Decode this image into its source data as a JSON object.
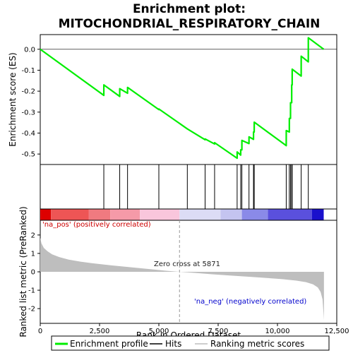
{
  "colors": {
    "enrichment_line": "#00ee00",
    "hits": "#000000",
    "metric_fill": "#bebebe",
    "pos_label": "#cc0000",
    "neg_label": "#0000cc"
  },
  "chart_data": [
    {
      "type": "line",
      "panel": "enrichment",
      "title_line1": "Enrichment plot:",
      "title_line2": "MITOCHONDRIAL_RESPIRATORY_CHAIN",
      "ylabel": "Enrichment score (ES)",
      "ylim": [
        -0.55,
        0.07
      ],
      "yticks": [
        0.0,
        -0.1,
        -0.2,
        -0.3,
        -0.4,
        -0.5
      ],
      "ytick_labels": [
        "0.0",
        "-0.1",
        "-0.2",
        "-0.3",
        "-0.4",
        "-0.5"
      ],
      "xlim": [
        0,
        12500
      ],
      "hits": [
        2680,
        3350,
        3680,
        5000,
        6200,
        6950,
        7350,
        8300,
        8450,
        8500,
        8800,
        8990,
        9020,
        10370,
        10500,
        10550,
        10600,
        10620,
        11000,
        11300
      ],
      "es_profile": [
        [
          0,
          0.0
        ],
        [
          2680,
          -0.22
        ],
        [
          2681,
          -0.17
        ],
        [
          3350,
          -0.225
        ],
        [
          3351,
          -0.188
        ],
        [
          3680,
          -0.21
        ],
        [
          3681,
          -0.182
        ],
        [
          5000,
          -0.288
        ],
        [
          5001,
          -0.285
        ],
        [
          6200,
          -0.38
        ],
        [
          6950,
          -0.432
        ],
        [
          6951,
          -0.428
        ],
        [
          7350,
          -0.452
        ],
        [
          7351,
          -0.446
        ],
        [
          8300,
          -0.52
        ],
        [
          8301,
          -0.49
        ],
        [
          8450,
          -0.505
        ],
        [
          8451,
          -0.48
        ],
        [
          8500,
          -0.48
        ],
        [
          8501,
          -0.435
        ],
        [
          8800,
          -0.45
        ],
        [
          8801,
          -0.418
        ],
        [
          8990,
          -0.43
        ],
        [
          8991,
          -0.395
        ],
        [
          9020,
          -0.395
        ],
        [
          9021,
          -0.348
        ],
        [
          10370,
          -0.46
        ],
        [
          10371,
          -0.388
        ],
        [
          10500,
          -0.395
        ],
        [
          10501,
          -0.33
        ],
        [
          10550,
          -0.33
        ],
        [
          10551,
          -0.255
        ],
        [
          10600,
          -0.255
        ],
        [
          10601,
          -0.17
        ],
        [
          10620,
          -0.17
        ],
        [
          10621,
          -0.095
        ],
        [
          11000,
          -0.128
        ],
        [
          11001,
          -0.033
        ],
        [
          11300,
          -0.06
        ],
        [
          11301,
          0.055
        ],
        [
          11950,
          0.0
        ]
      ],
      "legend": [
        "Enrichment profile",
        "Hits",
        "Ranking metric scores"
      ]
    },
    {
      "type": "heatmap",
      "panel": "rank-bar",
      "xlim": [
        0,
        12500
      ],
      "segments": [
        {
          "x0": 0,
          "x1": 450,
          "color": "#dd0000"
        },
        {
          "x0": 450,
          "x1": 2050,
          "color": "#ee5555"
        },
        {
          "x0": 2050,
          "x1": 2950,
          "color": "#f07a80"
        },
        {
          "x0": 2950,
          "x1": 4200,
          "color": "#f59aa8"
        },
        {
          "x0": 4200,
          "x1": 5871,
          "color": "#f9c6dc"
        },
        {
          "x0": 5871,
          "x1": 7600,
          "color": "#dcdcf5"
        },
        {
          "x0": 7600,
          "x1": 8500,
          "color": "#c4c4f0"
        },
        {
          "x0": 8500,
          "x1": 9600,
          "color": "#8a8ae8"
        },
        {
          "x0": 9600,
          "x1": 11450,
          "color": "#5a50dd"
        },
        {
          "x0": 11450,
          "x1": 11950,
          "color": "#1a10cc"
        }
      ]
    },
    {
      "type": "area",
      "panel": "ranked-metric",
      "ylabel": "Ranked list metric (PreRanked)",
      "xlabel": "Rank in Ordered Dataset",
      "ylim": [
        -2.8,
        2.8
      ],
      "yticks": [
        2,
        1,
        0,
        -1,
        -2
      ],
      "ytick_labels": [
        "2",
        "1",
        "0",
        "-1",
        "-2"
      ],
      "xlim": [
        0,
        12500
      ],
      "xticks": [
        0,
        2500,
        5000,
        7500,
        10000,
        12500
      ],
      "xtick_labels": [
        "0",
        "2,500",
        "5,000",
        "7,500",
        "10,000",
        "12,500"
      ],
      "zero_cross": 5871,
      "zero_cross_label": "Zero cross at 5871",
      "pos_label": "'na_pos' (positively correlated)",
      "neg_label": "'na_neg' (negatively correlated)",
      "metric_profile": [
        [
          0,
          1.85
        ],
        [
          50,
          1.55
        ],
        [
          150,
          1.3
        ],
        [
          300,
          1.12
        ],
        [
          500,
          0.95
        ],
        [
          800,
          0.8
        ],
        [
          1200,
          0.66
        ],
        [
          1700,
          0.55
        ],
        [
          2300,
          0.45
        ],
        [
          3000,
          0.35
        ],
        [
          3800,
          0.25
        ],
        [
          4600,
          0.15
        ],
        [
          5300,
          0.06
        ],
        [
          5871,
          0.0
        ],
        [
          6500,
          -0.06
        ],
        [
          7200,
          -0.13
        ],
        [
          8000,
          -0.2
        ],
        [
          8800,
          -0.27
        ],
        [
          9500,
          -0.33
        ],
        [
          10200,
          -0.4
        ],
        [
          10800,
          -0.48
        ],
        [
          11200,
          -0.56
        ],
        [
          11500,
          -0.68
        ],
        [
          11700,
          -0.85
        ],
        [
          11820,
          -1.1
        ],
        [
          11900,
          -1.5
        ],
        [
          11940,
          -2.2
        ],
        [
          11960,
          -2.62
        ]
      ]
    }
  ]
}
